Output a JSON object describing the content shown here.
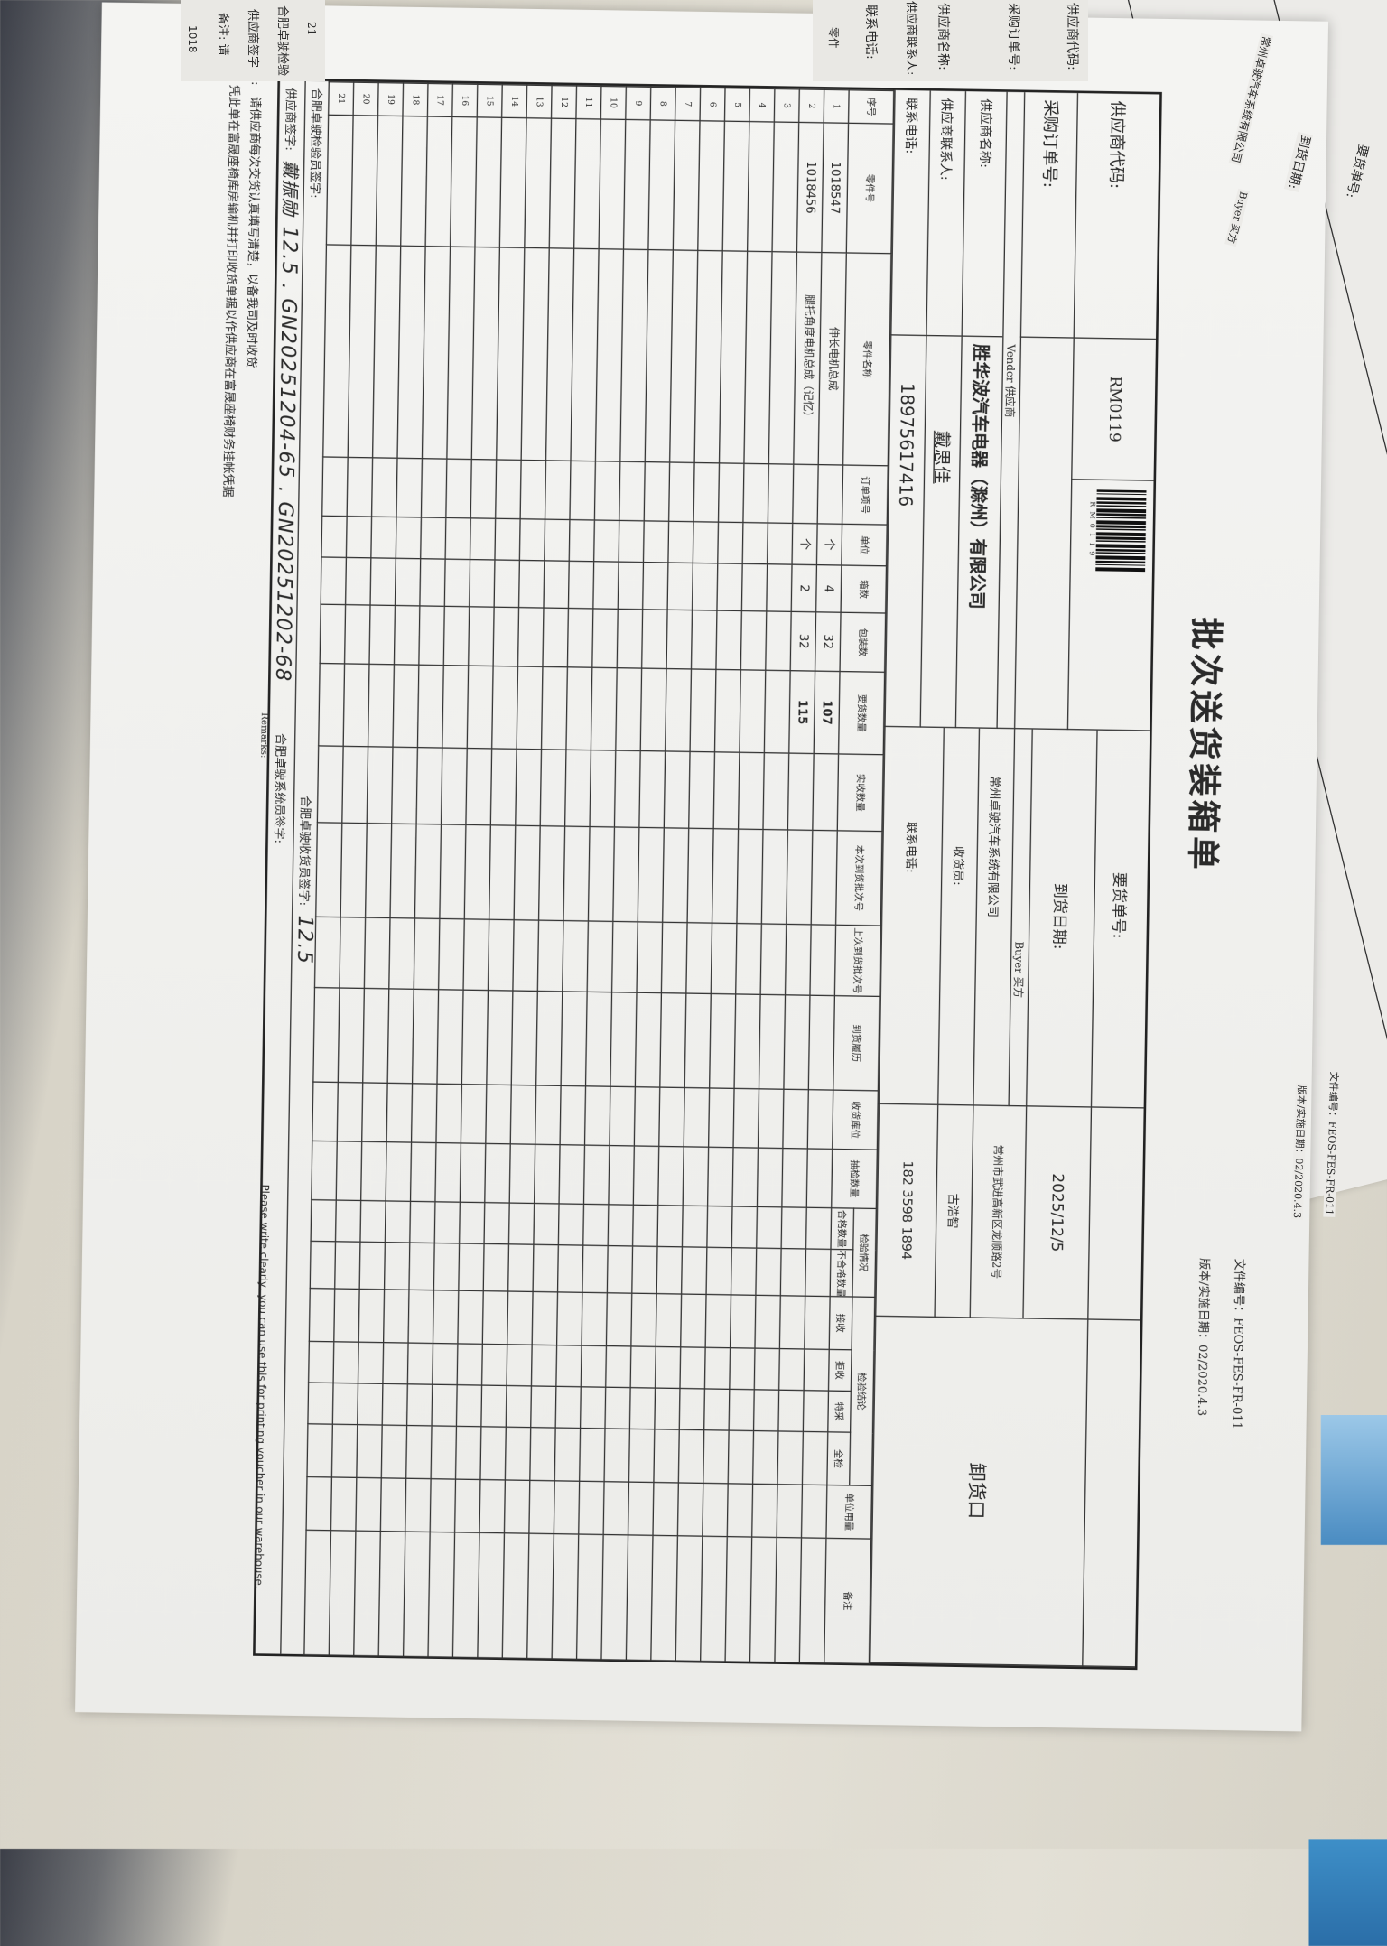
{
  "form": {
    "title": "批次送货装箱单",
    "doc_number": "文件编号：FEOS-FES-FR-011",
    "version": "版本/实施日期：02/2020.4.3",
    "supplier": {
      "code_label": "供应商代码:",
      "code_value": "RM0119",
      "barcode_text": "RM0119",
      "po_label": "采购订单号:",
      "po_value": "",
      "vendor_label": "Vender  供应商",
      "name_label": "供应商名称:",
      "name_value": "胜华波汽车电器（滁州）有限公司",
      "contact_label": "供应商联系人:",
      "contact_value": "戴思佳",
      "phone_label": "联系电话:",
      "phone_value": "18975617416"
    },
    "buyer": {
      "order_no_label": "要货单号:",
      "order_no_value": "",
      "arrival_label": "到货日期:",
      "arrival_value": "2025/12/5",
      "buyer_label": "Buyer  买方",
      "company": "常州卓驶汽车系统有限公司",
      "address": "常州市武进高新区龙顺路2号",
      "receiver_label": "收货员:",
      "receiver_value": "古浩智",
      "phone_label": "联系电话:",
      "phone_value": "182 3598 1894",
      "dock": "卸货口"
    },
    "table": {
      "headers": [
        "序号",
        "零件号",
        "零件名称",
        "订单项号",
        "单位",
        "箱数",
        "包装数",
        "要货数量",
        "实收数量",
        "本次到货批次号",
        "上次到货批次号",
        "到货履历",
        "收货库位",
        "抽检数量",
        "合格数量",
        "不合格数量",
        "接收",
        "拒收",
        "特采",
        "全检",
        "单位用量",
        "备注"
      ],
      "group_inspection": "检验情况",
      "group_conclusion": "检验结论",
      "rows": [
        [
          "1",
          "1018547",
          "伸长电机总成",
          "",
          "个",
          "4",
          "32",
          "107",
          "",
          "",
          "",
          "",
          "",
          "",
          "",
          "",
          "",
          "",
          "",
          "",
          "",
          ""
        ],
        [
          "2",
          "1018456",
          "腿托角度电机总成（记忆）",
          "",
          "个",
          "2",
          "32",
          "115",
          "",
          "",
          "",
          "",
          "",
          "",
          "",
          "",
          "",
          "",
          "",
          "",
          "",
          ""
        ],
        [
          "3"
        ],
        [
          "4"
        ],
        [
          "5"
        ],
        [
          "6"
        ],
        [
          "7"
        ],
        [
          "8"
        ],
        [
          "9"
        ],
        [
          "10"
        ],
        [
          "11"
        ],
        [
          "12"
        ],
        [
          "13"
        ],
        [
          "14"
        ],
        [
          "15"
        ],
        [
          "16"
        ],
        [
          "17"
        ],
        [
          "18"
        ],
        [
          "19"
        ],
        [
          "20"
        ],
        [
          "21"
        ]
      ]
    },
    "signatures": {
      "inspector_label": "合肥卓驶检验员签字:",
      "supplier_label": "供应商签字:",
      "supplier_handwritten": "12.5 . GN20251204-65 . GN20251202-68",
      "supplier_signature_name": "戴振勋",
      "receiver_label": "合肥卓驶收货员签字:",
      "receiver_handwritten": "12.5",
      "system_label": "合肥卓驶系统员签字:"
    },
    "remarks": {
      "label": "备注:",
      "line1": "请供应商每次交货认真填写清楚，以备我司及时收货",
      "line2": "凭此单在富晟座椅库房输机并打印收货单据以作供应商在富晟座椅财务挂帐凭据",
      "en_label": "Remarks:",
      "en_text": "Please write clearly,  you can use this for printing voucher in our warehouse."
    }
  },
  "back_paper": {
    "order_no_label": "要货单号:",
    "arrival_label": "到货日期:",
    "company": "常州卓驶汽车系统有限公司",
    "buyer_label": "Buyer  买方",
    "doc_number": "文件编号：FEOS-FES-FR-011",
    "version": "版本/实施日期：02/2020.4.3"
  },
  "under_paper": {
    "labels": [
      "供应商代码:",
      "采购订单号:",
      "供应商名称:",
      "供应商联系人:",
      "联系电话:",
      "零件"
    ],
    "part_prefix": "1018",
    "row_numbers": [
      "21",
      "20",
      "19",
      "18",
      "17",
      "16",
      "15",
      "14"
    ],
    "sig_label": "合肥卓驶检验",
    "supplier_sig": "供应商签字",
    "remark": "备注: 请"
  }
}
